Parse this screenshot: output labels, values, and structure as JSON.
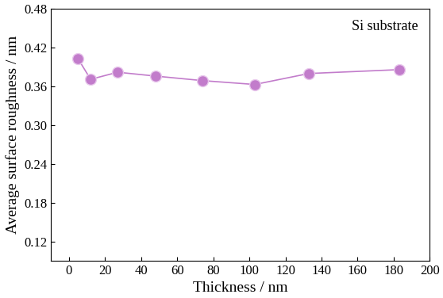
{
  "chart_data": {
    "type": "line",
    "x_label": "Thickness / nm",
    "y_label": "Average surface roughness / nm",
    "annotation": "Si substrate",
    "x": [
      5,
      12,
      27,
      48,
      74,
      103,
      133,
      183
    ],
    "values": [
      0.403,
      0.371,
      0.382,
      0.376,
      0.369,
      0.363,
      0.38,
      0.386
    ],
    "color": "#c27ccb",
    "marker": "circle",
    "line_style": "solid",
    "xlim": [
      -10,
      200
    ],
    "xticks": [
      0,
      20,
      40,
      60,
      80,
      100,
      120,
      140,
      160,
      180,
      200
    ],
    "ylim": [
      0.09,
      0.48
    ],
    "yticks": [
      0.12,
      0.18,
      0.24,
      {
        "value": 0.3,
        "label": "0.30"
      },
      0.36,
      0.42,
      0.48
    ],
    "grid": false
  }
}
